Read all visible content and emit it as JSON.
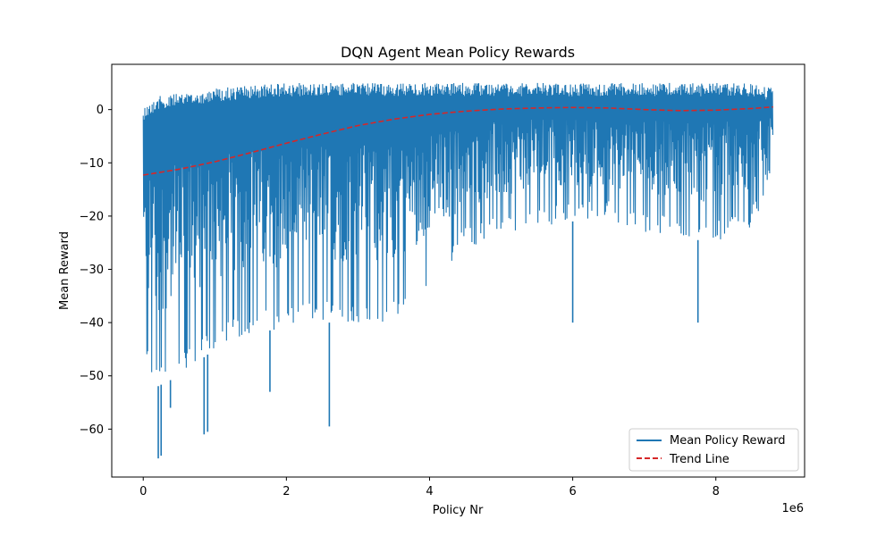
{
  "chart_data": {
    "type": "line",
    "title": "DQN Agent Mean Policy Rewards",
    "xlabel": "Policy Nr",
    "ylabel": "Mean Reward",
    "x_offset_text": "1e6",
    "xlim": [
      -0.44,
      9.24
    ],
    "ylim": [
      -69,
      8.5
    ],
    "x_ticks": [
      0,
      2,
      4,
      6,
      8
    ],
    "x_tick_labels": [
      "0",
      "2",
      "4",
      "6",
      "8"
    ],
    "y_ticks": [
      0,
      -10,
      -20,
      -30,
      -40,
      -50,
      -60
    ],
    "y_tick_labels": [
      "0",
      "−10",
      "−20",
      "−30",
      "−40",
      "−50",
      "−60"
    ],
    "grid": false,
    "legend_position": "lower-right",
    "series": [
      {
        "name": "Mean Policy Reward",
        "style": "solid",
        "color": "#1f77b4",
        "envelope": {
          "x": [
            0.0,
            0.2,
            0.5,
            1.0,
            1.5,
            2.0,
            2.5,
            3.0,
            3.5,
            4.0,
            4.5,
            5.0,
            5.5,
            6.0,
            6.5,
            7.0,
            7.5,
            8.0,
            8.5,
            8.8
          ],
          "upper": [
            0.5,
            2.5,
            3.0,
            4.0,
            4.5,
            5.0,
            5.0,
            5.0,
            5.0,
            5.0,
            5.0,
            5.0,
            5.0,
            5.0,
            5.0,
            5.0,
            5.0,
            5.0,
            5.0,
            4.0
          ],
          "lower": [
            -47,
            -52,
            -50,
            -45,
            -42,
            -41,
            -40,
            -40,
            -40,
            -33,
            -26,
            -24,
            -22,
            -21,
            -21,
            -23,
            -24,
            -25,
            -22,
            -18
          ]
        },
        "outliers": [
          {
            "x": 0.21,
            "y": -65.5
          },
          {
            "x": 0.25,
            "y": -65.0
          },
          {
            "x": 0.38,
            "y": -56.0
          },
          {
            "x": 0.85,
            "y": -61.0
          },
          {
            "x": 0.9,
            "y": -60.5
          },
          {
            "x": 1.77,
            "y": -53.0
          },
          {
            "x": 2.6,
            "y": -59.5
          },
          {
            "x": 6.0,
            "y": -40.0
          },
          {
            "x": 7.75,
            "y": -40.0
          }
        ]
      },
      {
        "name": "Trend Line",
        "style": "dashed",
        "color": "#d62728",
        "x": [
          0.0,
          0.5,
          1.0,
          1.5,
          2.0,
          2.5,
          3.0,
          3.5,
          4.0,
          4.5,
          5.0,
          5.5,
          6.0,
          6.5,
          7.0,
          7.5,
          8.0,
          8.5,
          8.8
        ],
        "values": [
          -12.3,
          -11.2,
          -9.8,
          -8.1,
          -6.3,
          -4.6,
          -3.0,
          -1.8,
          -0.9,
          -0.3,
          0.1,
          0.3,
          0.4,
          0.3,
          0.0,
          -0.2,
          -0.1,
          0.2,
          0.5
        ]
      }
    ]
  }
}
